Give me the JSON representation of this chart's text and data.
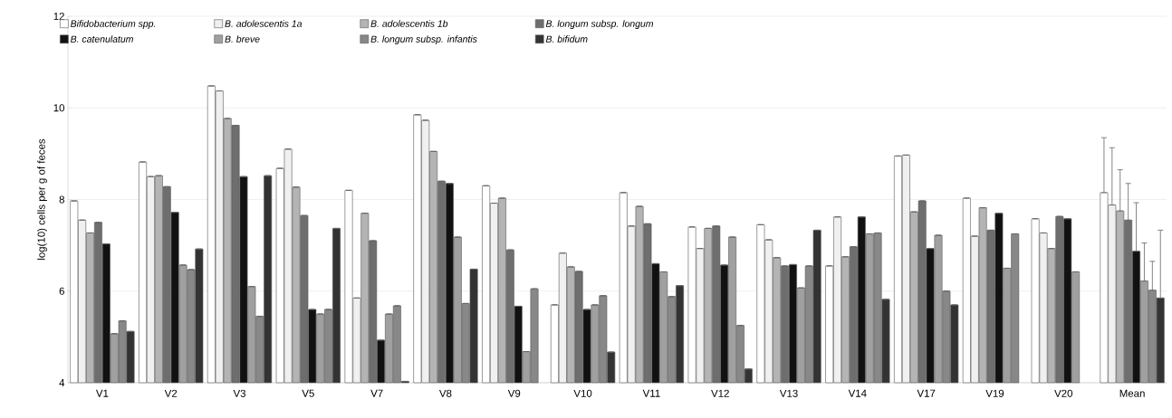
{
  "chart_data": {
    "type": "bar",
    "ylabel": "log(10) cells per g of feces",
    "categories": [
      "V1",
      "V2",
      "V3",
      "V5",
      "V7",
      "V8",
      "V9",
      "V10",
      "V11",
      "V12",
      "V13",
      "V14",
      "V17",
      "V19",
      "V20",
      "Mean"
    ],
    "ylim": [
      4,
      12
    ],
    "yticks": [
      4,
      6,
      8,
      10,
      12
    ],
    "grid": "y",
    "legend": "top left",
    "series": [
      {
        "name": "Bifidobacterium spp.",
        "color": "#ffffff",
        "values": [
          7.97,
          8.82,
          10.48,
          8.68,
          8.2,
          9.85,
          8.3,
          5.7,
          8.15,
          7.4,
          7.45,
          6.55,
          8.95,
          8.03,
          7.58,
          8.15
        ],
        "errors": [
          null,
          null,
          null,
          null,
          null,
          null,
          null,
          null,
          null,
          null,
          null,
          null,
          null,
          null,
          null,
          [
            8.15,
            9.35
          ]
        ]
      },
      {
        "name": "B. adolescentis 1a",
        "color": "#f0f0f0",
        "values": [
          7.55,
          8.5,
          10.37,
          9.1,
          5.85,
          9.73,
          7.92,
          6.83,
          7.42,
          6.93,
          7.12,
          7.62,
          8.97,
          7.2,
          7.27,
          7.88
        ],
        "errors": [
          null,
          null,
          null,
          null,
          null,
          null,
          null,
          null,
          null,
          null,
          null,
          null,
          null,
          null,
          null,
          [
            7.88,
            9.13
          ]
        ]
      },
      {
        "name": "B. adolescentis 1b",
        "color": "#b4b4b4",
        "values": [
          7.27,
          8.52,
          9.77,
          8.27,
          7.7,
          9.05,
          8.03,
          6.53,
          7.85,
          7.37,
          6.73,
          6.75,
          7.73,
          7.82,
          6.93,
          7.75
        ],
        "errors": [
          null,
          null,
          null,
          null,
          null,
          null,
          null,
          null,
          null,
          null,
          null,
          null,
          null,
          null,
          null,
          [
            7.75,
            8.65
          ]
        ]
      },
      {
        "name": "B. longum subsp. longum",
        "color": "#6e6e6e",
        "values": [
          7.5,
          8.28,
          9.62,
          7.65,
          7.1,
          8.4,
          6.9,
          6.43,
          7.47,
          7.42,
          6.55,
          6.97,
          7.97,
          7.33,
          7.63,
          7.55
        ],
        "errors": [
          null,
          null,
          null,
          null,
          null,
          null,
          null,
          null,
          null,
          null,
          null,
          null,
          null,
          null,
          null,
          [
            7.55,
            8.35
          ]
        ]
      },
      {
        "name": "B. catenulatum",
        "color": "#111111",
        "values": [
          7.03,
          7.72,
          8.5,
          5.6,
          4.93,
          8.35,
          5.67,
          5.6,
          6.6,
          6.57,
          6.58,
          7.62,
          6.93,
          7.7,
          7.58,
          6.87
        ],
        "errors": [
          null,
          null,
          null,
          null,
          null,
          null,
          null,
          null,
          null,
          null,
          null,
          null,
          null,
          null,
          null,
          [
            6.87,
            7.93
          ]
        ]
      },
      {
        "name": "B. breve",
        "color": "#a0a0a0",
        "values": [
          5.07,
          6.57,
          6.1,
          5.5,
          5.5,
          7.18,
          4.68,
          5.7,
          6.42,
          7.18,
          6.07,
          7.25,
          7.22,
          6.5,
          6.42,
          6.22
        ],
        "errors": [
          null,
          null,
          null,
          null,
          null,
          null,
          null,
          null,
          null,
          null,
          null,
          null,
          null,
          null,
          null,
          [
            6.22,
            7.05
          ]
        ]
      },
      {
        "name": "B. longum subsp. infantis",
        "color": "#888888",
        "values": [
          5.35,
          6.47,
          5.45,
          5.6,
          5.68,
          5.73,
          6.05,
          5.9,
          5.88,
          5.25,
          6.55,
          7.27,
          6.0,
          7.25,
          null,
          6.02
        ],
        "errors": [
          null,
          null,
          null,
          null,
          null,
          null,
          null,
          null,
          null,
          null,
          null,
          null,
          null,
          null,
          null,
          [
            6.02,
            6.65
          ]
        ]
      },
      {
        "name": "B. bifidum",
        "color": "#333333",
        "values": [
          5.12,
          6.92,
          8.52,
          7.37,
          4.03,
          6.48,
          null,
          4.67,
          6.12,
          4.3,
          7.33,
          5.82,
          5.7,
          null,
          null,
          5.85
        ],
        "errors": [
          null,
          null,
          null,
          null,
          null,
          null,
          null,
          null,
          null,
          null,
          null,
          null,
          null,
          null,
          null,
          [
            5.85,
            7.33
          ]
        ]
      }
    ]
  }
}
